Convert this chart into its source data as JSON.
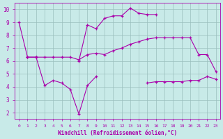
{
  "x": [
    0,
    1,
    2,
    3,
    4,
    5,
    6,
    7,
    8,
    9,
    10,
    11,
    12,
    13,
    14,
    15,
    16,
    17,
    18,
    19,
    20,
    21,
    22,
    23
  ],
  "line1": [
    9.0,
    6.3,
    6.3,
    6.3,
    6.3,
    6.3,
    6.3,
    6.1,
    6.5,
    6.6,
    6.5,
    6.8,
    7.0,
    7.3,
    7.5,
    7.7,
    7.8,
    7.8,
    7.8,
    7.8,
    7.8,
    6.5,
    6.5,
    5.2
  ],
  "line2": [
    null,
    6.3,
    6.3,
    null,
    null,
    null,
    null,
    6.0,
    8.8,
    8.5,
    9.3,
    9.5,
    9.5,
    10.1,
    9.7,
    9.6,
    9.6,
    null,
    null,
    null,
    null,
    null,
    null,
    null
  ],
  "line3": [
    null,
    6.3,
    6.3,
    4.1,
    4.5,
    4.3,
    3.8,
    1.9,
    4.1,
    4.8,
    null,
    null,
    null,
    null,
    null,
    4.3,
    4.4,
    4.4,
    4.4,
    4.4,
    4.5,
    4.5,
    4.8,
    4.6
  ],
  "bg_color": "#c8eae8",
  "grid_color": "#9bbfbe",
  "line_color": "#aa00aa",
  "xlabel": "Windchill (Refroidissement éolien,°C)",
  "ylim": [
    1.5,
    10.5
  ],
  "xlim": [
    -0.5,
    23.5
  ],
  "yticks": [
    2,
    3,
    4,
    5,
    6,
    7,
    8,
    9,
    10
  ],
  "xticks": [
    0,
    1,
    2,
    3,
    4,
    5,
    6,
    7,
    8,
    9,
    10,
    11,
    12,
    13,
    14,
    15,
    16,
    17,
    18,
    19,
    20,
    21,
    22,
    23
  ]
}
